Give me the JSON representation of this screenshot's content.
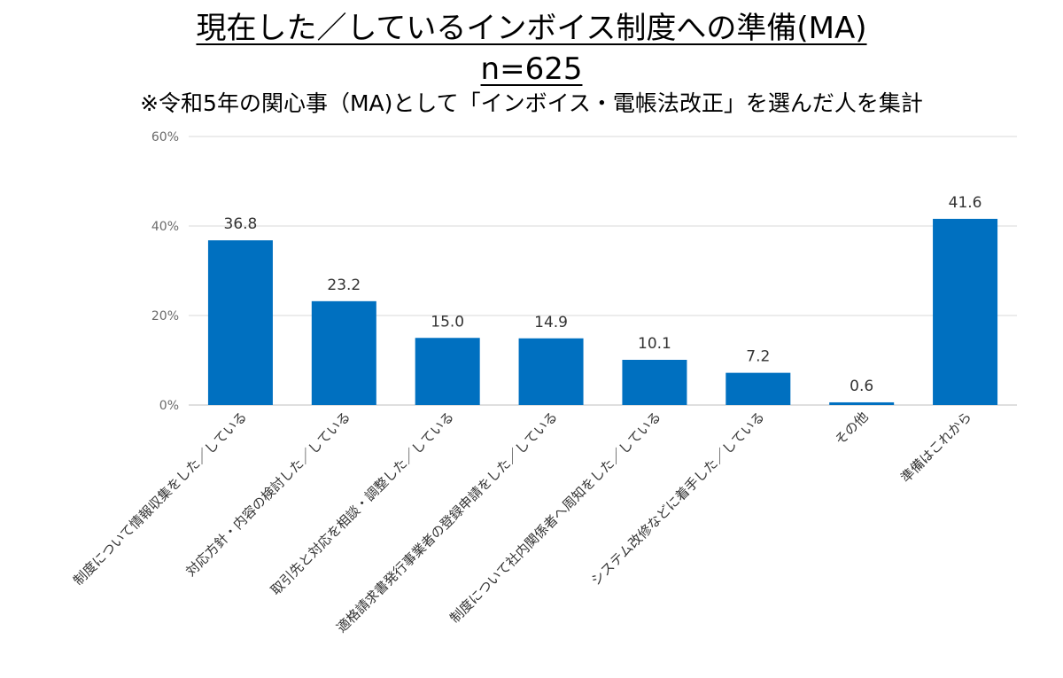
{
  "header": {
    "title": "現在した／しているインボイス制度への準備(MA)",
    "sample_size": "n=625",
    "note": "※令和5年の関心事（MA)として「インボイス・電帳法改正」を選んだ人を集計"
  },
  "colors": {
    "bar": "#0070C0",
    "grid": "#d9d9d9",
    "axis": "#bfbfbf"
  },
  "chart_data": {
    "type": "bar",
    "title": "現在した／しているインボイス制度への準備(MA)",
    "subtitle": "n=625",
    "note": "※令和5年の関心事（MA)として「インボイス・電帳法改正」を選んだ人を集計",
    "categories": [
      "制度について情報収集をした／している",
      "対応方針・内容の検討した／している",
      "取引先と対応を相談・調整した／している",
      "適格請求書発行事業者の登録申請をした／している",
      "制度について社内関係者へ周知をした／している",
      "システム改修などに着手した／している",
      "その他",
      "準備はこれから"
    ],
    "values": [
      36.8,
      23.2,
      15.0,
      14.9,
      10.1,
      7.2,
      0.6,
      41.6
    ],
    "data_labels": [
      "36.8",
      "23.2",
      "15.0",
      "14.9",
      "10.1",
      "7.2",
      "0.6",
      "41.6"
    ],
    "ylim": [
      0,
      60
    ],
    "yticks": [
      0,
      20,
      40,
      60
    ],
    "ytick_labels": [
      "0%",
      "20%",
      "40%",
      "60%"
    ],
    "grid": true,
    "legend": "none"
  }
}
